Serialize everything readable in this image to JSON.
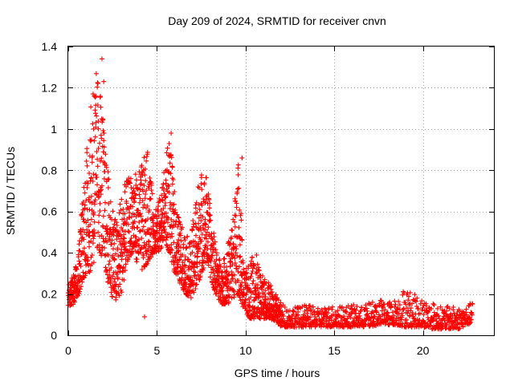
{
  "chart_data": {
    "type": "scatter",
    "title": "Day 209 of 2024, SRMTID for receiver cnvn",
    "xlabel": "GPS time / hours",
    "ylabel": "SRMTID / TECUs",
    "xlim": [
      0,
      24
    ],
    "ylim": [
      0,
      1.4
    ],
    "grid": true,
    "x_ticks": [
      0,
      5,
      10,
      15,
      20
    ],
    "x_tick_labels": [
      "0",
      "5",
      "10",
      "15",
      "20"
    ],
    "y_ticks": [
      0,
      0.2,
      0.4,
      0.6,
      0.8,
      1.0,
      1.2,
      1.4
    ],
    "y_tick_labels": [
      "0",
      "0.2",
      "0.4",
      "0.6",
      "0.8",
      "1",
      "1.2",
      "1.4"
    ],
    "marker": "plus",
    "marker_color": "#ff0000",
    "series": [
      {
        "name": "SRMTID",
        "envelope_hours": [
          0.0,
          0.3,
          0.6,
          0.9,
          1.2,
          1.5,
          1.8,
          2.1,
          2.4,
          2.7,
          3.0,
          3.3,
          3.6,
          3.9,
          4.2,
          4.5,
          4.8,
          5.1,
          5.4,
          5.7,
          6.0,
          6.3,
          6.6,
          6.9,
          7.2,
          7.5,
          7.8,
          8.1,
          8.4,
          8.7,
          9.0,
          9.3,
          9.6,
          9.9,
          10.2,
          10.5,
          10.8,
          11.1,
          11.4,
          11.7,
          12.0,
          12.5,
          13.0,
          13.5,
          14.0,
          14.5,
          15.0,
          15.5,
          16.0,
          16.5,
          17.0,
          17.5,
          18.0,
          18.5,
          19.0,
          19.5,
          20.0,
          20.5,
          21.0,
          21.5,
          22.0,
          22.5,
          22.8
        ],
        "envelope_low": [
          0.14,
          0.15,
          0.2,
          0.28,
          0.3,
          0.35,
          0.4,
          0.3,
          0.2,
          0.15,
          0.2,
          0.35,
          0.4,
          0.35,
          0.3,
          0.35,
          0.4,
          0.4,
          0.45,
          0.4,
          0.3,
          0.25,
          0.2,
          0.18,
          0.2,
          0.3,
          0.35,
          0.25,
          0.18,
          0.15,
          0.15,
          0.18,
          0.2,
          0.12,
          0.08,
          0.08,
          0.08,
          0.08,
          0.08,
          0.06,
          0.04,
          0.04,
          0.04,
          0.04,
          0.04,
          0.04,
          0.04,
          0.04,
          0.04,
          0.04,
          0.04,
          0.05,
          0.05,
          0.05,
          0.04,
          0.04,
          0.04,
          0.03,
          0.03,
          0.03,
          0.03,
          0.05,
          0.06
        ],
        "envelope_high": [
          0.25,
          0.3,
          0.45,
          0.8,
          1.05,
          1.3,
          1.25,
          0.9,
          0.7,
          0.55,
          0.7,
          0.75,
          0.8,
          0.78,
          0.85,
          0.9,
          0.65,
          0.65,
          0.8,
          0.98,
          0.7,
          0.55,
          0.5,
          0.45,
          0.7,
          0.8,
          0.78,
          0.55,
          0.4,
          0.35,
          0.45,
          0.6,
          0.85,
          0.3,
          0.35,
          0.45,
          0.3,
          0.28,
          0.25,
          0.2,
          0.16,
          0.14,
          0.14,
          0.15,
          0.13,
          0.14,
          0.15,
          0.14,
          0.15,
          0.14,
          0.16,
          0.18,
          0.16,
          0.18,
          0.24,
          0.2,
          0.18,
          0.16,
          0.14,
          0.14,
          0.14,
          0.14,
          0.17
        ],
        "notable_peaks": [
          {
            "x": 1.9,
            "y": 1.34
          },
          {
            "x": 2.0,
            "y": 1.23
          },
          {
            "x": 1.4,
            "y": 1.17
          },
          {
            "x": 5.8,
            "y": 0.98
          },
          {
            "x": 9.8,
            "y": 0.86
          },
          {
            "x": 4.3,
            "y": 0.09
          }
        ]
      }
    ]
  }
}
